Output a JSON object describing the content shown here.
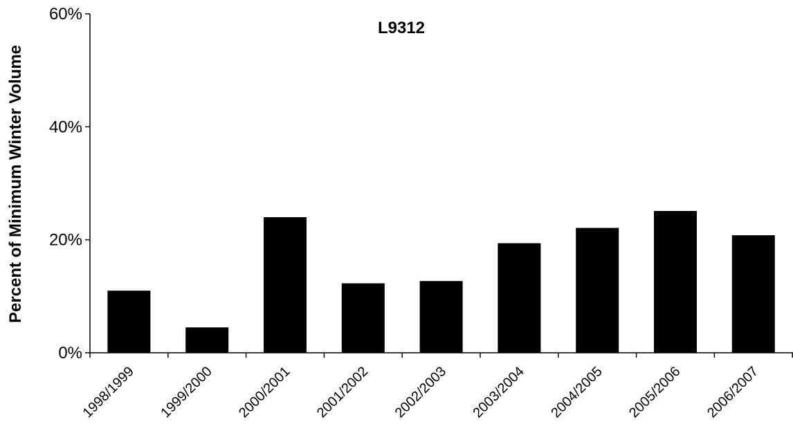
{
  "chart_data": {
    "type": "bar",
    "title": "L9312",
    "xlabel": "",
    "ylabel": "Percent of Minimum Winter Volume",
    "categories": [
      "1998/1999",
      "1999/2000",
      "2000/2001",
      "2001/2002",
      "2002/2003",
      "2003/2004",
      "2004/2005",
      "2005/2006",
      "2006/2007"
    ],
    "values": [
      11.0,
      4.5,
      24.0,
      12.3,
      12.7,
      19.4,
      22.1,
      25.1,
      20.8
    ],
    "ylim": [
      0,
      60
    ],
    "yticks": [
      0,
      20,
      40,
      60
    ],
    "ytick_labels": [
      "0%",
      "20%",
      "40%",
      "60%"
    ],
    "grid": false,
    "legend": "none",
    "bar_color": "#000000"
  }
}
